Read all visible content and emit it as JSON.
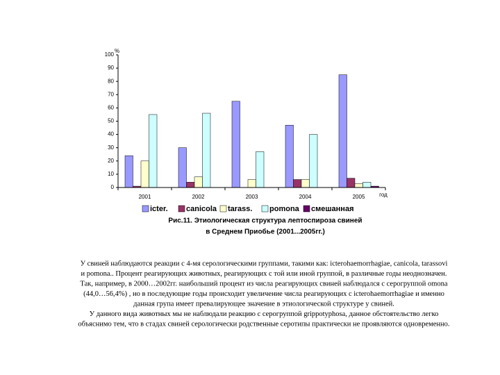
{
  "chart_data": {
    "type": "bar",
    "y_unit_label": "%",
    "x_label": "год",
    "categories": [
      "2001",
      "2002",
      "2003",
      "2004",
      "2005"
    ],
    "series": [
      {
        "name": "icter.",
        "color": "#9999ff",
        "values": [
          24,
          30,
          65,
          47,
          85
        ]
      },
      {
        "name": "canicola",
        "color": "#993366",
        "values": [
          1,
          4,
          0,
          6,
          7
        ]
      },
      {
        "name": "tarass.",
        "color": "#ffffcc",
        "values": [
          20,
          8,
          6,
          6,
          3
        ]
      },
      {
        "name": "pomona",
        "color": "#ccffff",
        "values": [
          55,
          56,
          27,
          40,
          4
        ]
      },
      {
        "name": "смешанная",
        "color": "#660066",
        "values": [
          0,
          0,
          0,
          0,
          1
        ]
      }
    ],
    "ylim": [
      0,
      100
    ],
    "yticks": [
      0,
      10,
      20,
      30,
      40,
      50,
      60,
      70,
      80,
      90,
      100
    ],
    "caption": [
      "Рис.11. Этиологическая структура лептоспироза свиней",
      "в Среднем Приобье (2001...2005гг.)"
    ]
  },
  "body": [
    "У свиней наблюдаются реакции с 4-мя серологическими группами, такими как: icterohaemorrhagiae, canicola, tarassovi",
    "и pomona.. Процент реагирующих животных, реагирующих с той или иной группой, в различные годы неоднозначен.",
    "Так, например, в 2000…2002гг. наибольший процент из числа реагирующих свиней наблюдался с серогруппой omona",
    "(44,0…56,4%) , но в последующие годы происходит увеличение числа реагирующих с icterohaemorrhagiae и именно",
    "данная група имеет превалирующее значение в этиологической структуре у свиней.",
    "У данного вида животных мы не наблюдали реакцию с серогруппой grippotyphosa, данное обстоятельство легко",
    "объяснимо тем, что в стадах свиней серологически родственные серотипы практически не проявляются одновременно."
  ]
}
